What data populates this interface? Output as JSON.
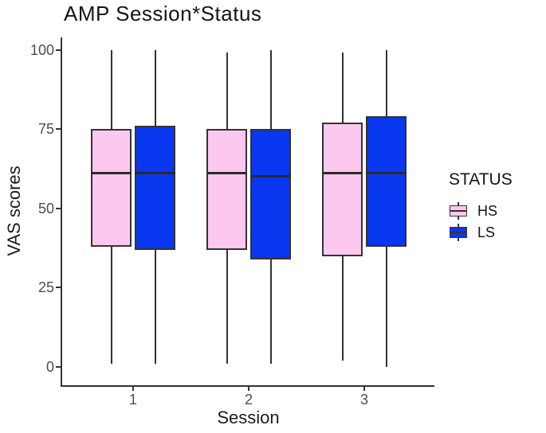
{
  "chart_data": {
    "type": "boxplot",
    "title": "AMP Session*Status",
    "xlabel": "Session",
    "ylabel": "VAS scores",
    "ylim": [
      0,
      100
    ],
    "yticks": [
      0,
      25,
      50,
      75,
      100
    ],
    "categories": [
      "1",
      "2",
      "3"
    ],
    "grid": false,
    "background": "#ffffff",
    "stroke_color": "#333333",
    "axis_text_color": "#4d4d4d",
    "legend": {
      "title": "STATUS",
      "position": "right",
      "entries": [
        {
          "label": "HS",
          "color": "#FDC8F0"
        },
        {
          "label": "LS",
          "color": "#0A37F0"
        }
      ]
    },
    "series": [
      {
        "name": "HS",
        "fill": "#FDC8F0",
        "boxes": [
          {
            "session": "1",
            "min": 1,
            "q1": 38,
            "median": 61,
            "q3": 75,
            "max": 100
          },
          {
            "session": "2",
            "min": 1,
            "q1": 37,
            "median": 61,
            "q3": 75,
            "max": 99
          },
          {
            "session": "3",
            "min": 2,
            "q1": 35,
            "median": 61,
            "q3": 77,
            "max": 99
          }
        ]
      },
      {
        "name": "LS",
        "fill": "#0A37F0",
        "boxes": [
          {
            "session": "1",
            "min": 1,
            "q1": 37,
            "median": 61,
            "q3": 76,
            "max": 100
          },
          {
            "session": "2",
            "min": 1,
            "q1": 34,
            "median": 60,
            "q3": 75,
            "max": 100
          },
          {
            "session": "3",
            "min": 0,
            "q1": 38,
            "median": 61,
            "q3": 79,
            "max": 100
          }
        ]
      }
    ]
  }
}
